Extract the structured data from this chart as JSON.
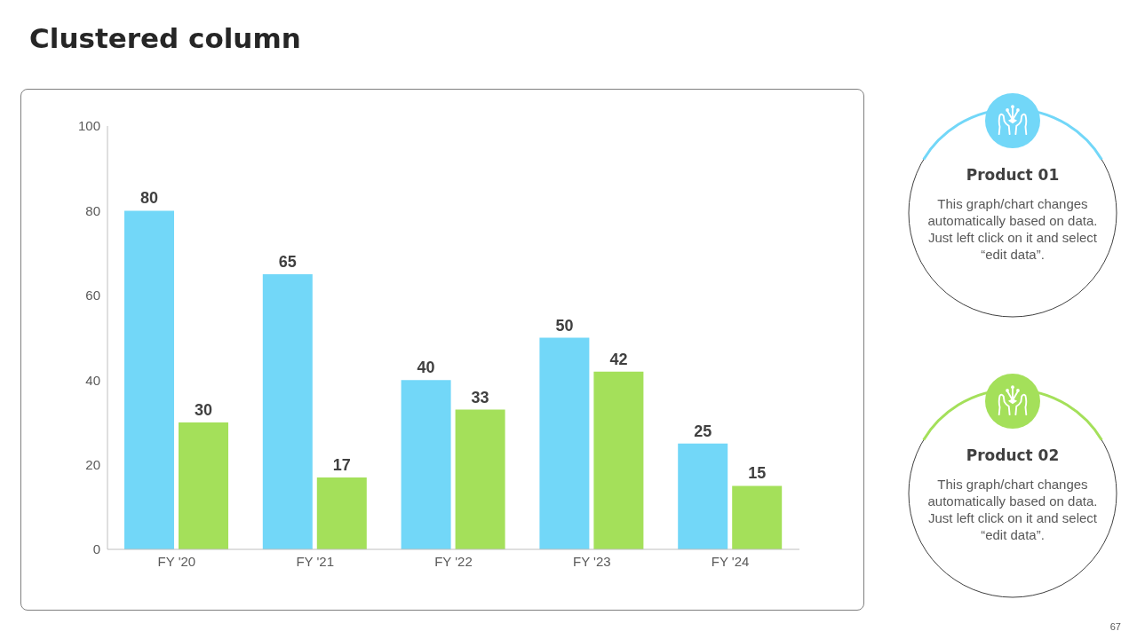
{
  "chart_data": {
    "type": "bar",
    "title": "Clustered column",
    "categories": [
      "FY '20",
      "FY '21",
      "FY '22",
      "FY '23",
      "FY '24"
    ],
    "series": [
      {
        "name": "Product 01",
        "color": "#72d7f8",
        "values": [
          80,
          65,
          40,
          50,
          25
        ]
      },
      {
        "name": "Product 02",
        "color": "#a4e05a",
        "values": [
          30,
          17,
          33,
          42,
          15
        ]
      }
    ],
    "ylim": [
      0,
      100
    ],
    "yticks": [
      0,
      20,
      40,
      60,
      80,
      100
    ],
    "data_labels": true,
    "legend": "right",
    "annotations": [
      "This graph/chart changes automatically based on data. Just left click on it and select “edit data”.",
      "This graph/chart changes automatically based on data. Just left click on it and select “edit data”.",
      "67"
    ]
  }
}
